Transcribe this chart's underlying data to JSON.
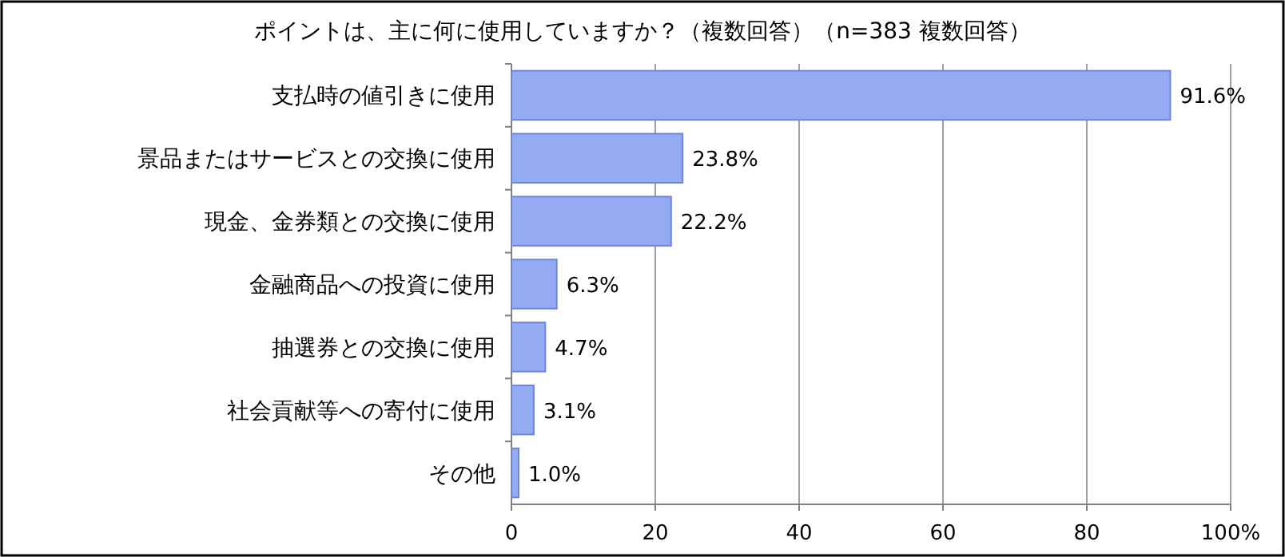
{
  "chart_data": {
    "type": "bar",
    "orientation": "horizontal",
    "title": "ポイントは、主に何に使用していますか？（複数回答）（n=383 複数回答）",
    "categories": [
      "支払時の値引きに使用",
      "景品またはサービスとの交換に使用",
      "現金、金券類との交換に使用",
      "金融商品への投資に使用",
      "抽選券との交換に使用",
      "社会貢献等への寄付に使用",
      "その他"
    ],
    "values": [
      91.6,
      23.8,
      22.2,
      6.3,
      4.7,
      3.1,
      1.0
    ],
    "value_labels": [
      "91.6%",
      "23.8%",
      "22.2%",
      "6.3%",
      "4.7%",
      "3.1%",
      "1.0%"
    ],
    "color": "#94aaf2",
    "xlim": [
      0,
      100
    ],
    "xticks": [
      0,
      20,
      40,
      60,
      80,
      {
        "value": 100,
        "label": "100%"
      }
    ],
    "grid": "x"
  }
}
